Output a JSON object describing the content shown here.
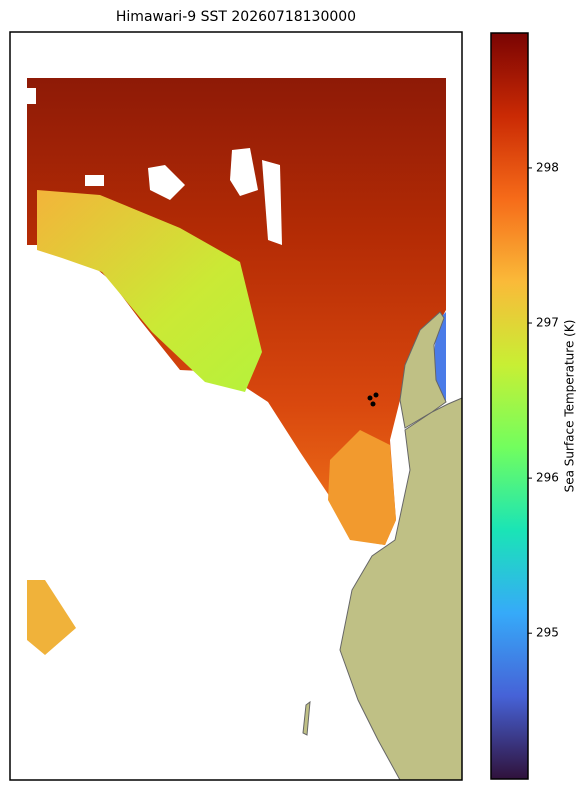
{
  "chart_data": {
    "type": "colormap-map",
    "title": "Himawari-9 SST 20260718130000",
    "colorbar": {
      "label": "Sea Surface Temperature (K)",
      "colormap": "turbo",
      "lim": [
        294.06,
        298.87
      ],
      "ticks": [
        295,
        296,
        297,
        298
      ]
    }
  }
}
